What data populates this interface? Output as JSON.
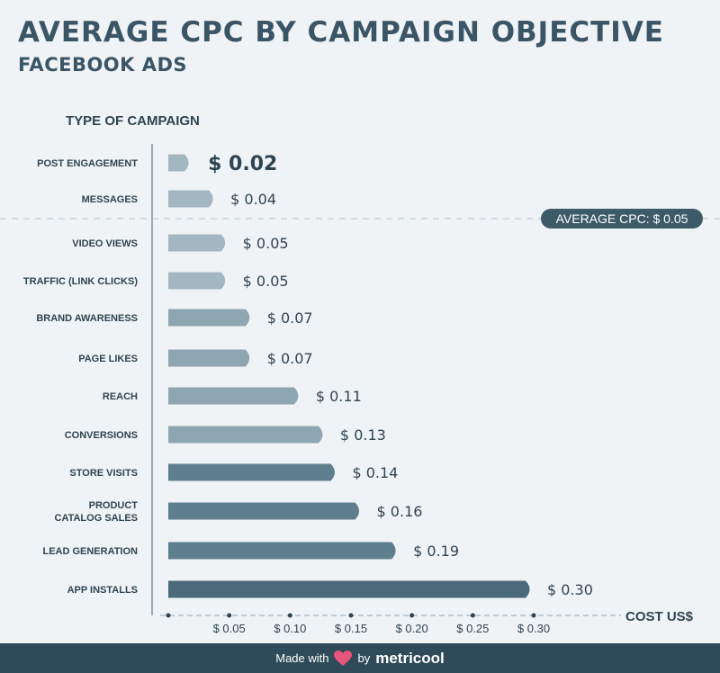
{
  "header": {
    "title": "AVERAGE CPC BY CAMPAIGN OBJECTIVE",
    "subtitle": "FACEBOOK ADS"
  },
  "chart_data": {
    "type": "bar",
    "orientation": "horizontal",
    "ylabel": "TYPE OF CAMPAIGN",
    "xlabel": "COST US$",
    "categories": [
      "POST ENGAGEMENT",
      "MESSAGES",
      "VIDEO VIEWS",
      "TRAFFIC (LINK CLICKS)",
      "BRAND AWARENESS",
      "PAGE LIKES",
      "REACH",
      "CONVERSIONS",
      "STORE VISITS",
      "PRODUCT|CATALOG SALES",
      "LEAD GENERATION",
      "APP INSTALLS"
    ],
    "values": [
      0.02,
      0.04,
      0.05,
      0.05,
      0.07,
      0.07,
      0.11,
      0.13,
      0.14,
      0.16,
      0.19,
      0.3
    ],
    "value_labels": [
      "$ 0.02",
      "$ 0.04",
      "$ 0.05",
      "$ 0.05",
      "$ 0.07",
      "$ 0.07",
      "$ 0.11",
      "$ 0.13",
      "$ 0.14",
      "$ 0.16",
      "$ 0.19",
      "$ 0.30"
    ],
    "xticks": [
      0.05,
      0.1,
      0.15,
      0.2,
      0.25,
      0.3
    ],
    "xtick_labels": [
      "$ 0.05",
      "$ 0.10",
      "$ 0.15",
      "$ 0.20",
      "$ 0.25",
      "$ 0.30"
    ],
    "xlim": [
      0,
      0.3
    ],
    "average": {
      "value": 0.05,
      "label": "AVERAGE CPC: $ 0.05"
    },
    "colors": {
      "light": "#a3b7c2",
      "mid": "#8ea6b1",
      "dark": "#5e7f8e",
      "darkest": "#4a6a7a",
      "text": "#2e4452"
    },
    "bar_color_keys": [
      "light",
      "light",
      "light",
      "light",
      "mid",
      "mid",
      "mid",
      "mid",
      "dark",
      "dark",
      "dark",
      "darkest"
    ]
  },
  "footer": {
    "made_with": "Made with",
    "by": "by",
    "brand": "metricool",
    "heart_color": "#e8547a"
  }
}
